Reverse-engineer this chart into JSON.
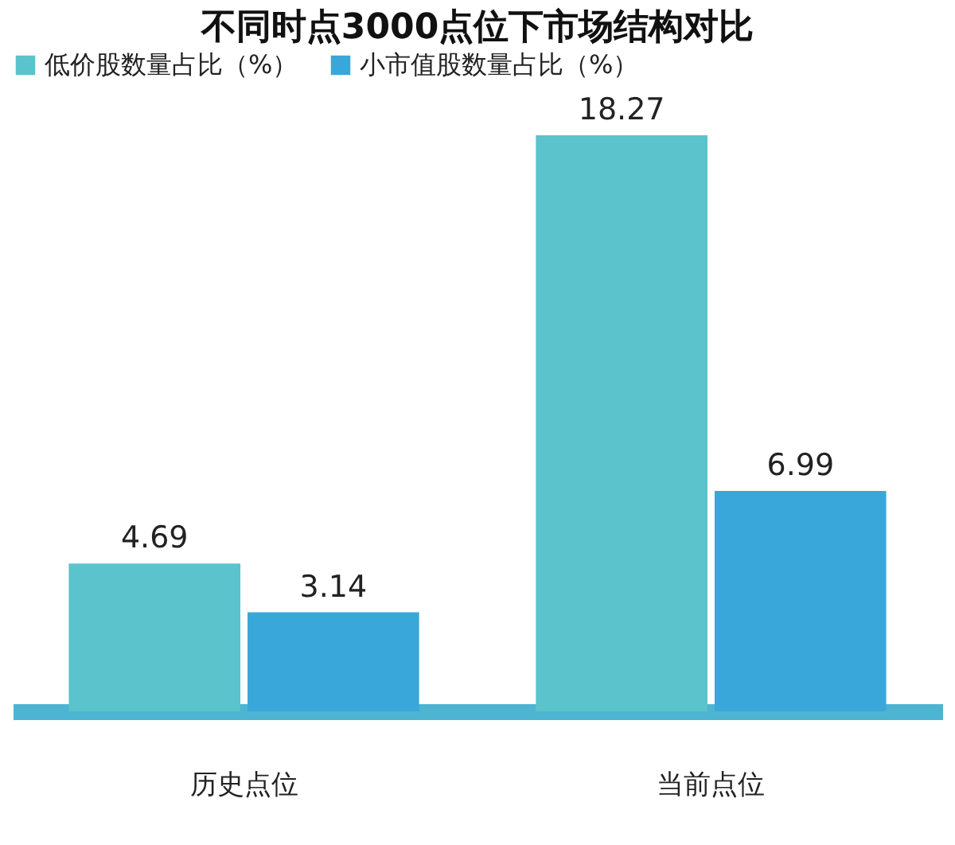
{
  "chart_data": {
    "type": "bar",
    "title": "不同时点3000点位下市场结构对比",
    "categories": [
      "历史点位",
      "当前点位"
    ],
    "series": [
      {
        "name": "低价股数量占比（%）",
        "color": "#5bc3cb",
        "values": [
          4.69,
          18.27
        ]
      },
      {
        "name": "小市值股数量占比（%）",
        "color": "#3aa7da",
        "values": [
          3.14,
          6.99
        ]
      }
    ],
    "data_labels": true,
    "legend": "top",
    "grid": false
  }
}
